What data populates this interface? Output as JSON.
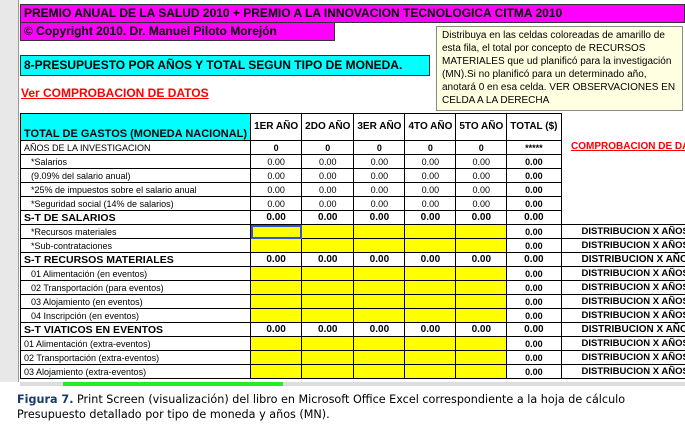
{
  "banner_title": "PREMIO ANUAL DE LA SALUD 2010 + PREMIO A LA INNOVACION TECNOLOGICA CITMA 2010",
  "copyright": "© Copyright 2010. Dr. Manuel Piloto Morejón",
  "section_title": "8-PRESUPUESTO POR AÑOS Y TOTAL SEGUN TIPO DE MONEDA.",
  "check_link": "Ver COMPROBACION DE DATOS",
  "check_side": "COMPROBACION DE DATOS",
  "table": {
    "header": {
      "label": "TOTAL DE GASTOS (MONEDA NACIONAL)",
      "cols": [
        "1ER AÑO",
        "2DO AÑO",
        "3ER AÑO",
        "4TO AÑO",
        "5TO AÑO",
        "TOTAL ($)"
      ]
    },
    "rows": [
      {
        "label": "AÑOS DE LA INVESTIGACION",
        "vals": [
          "0",
          "0",
          "0",
          "0",
          "0",
          "*****"
        ],
        "type": "years"
      },
      {
        "label": "*Salarios",
        "vals": [
          "0.00",
          "0.00",
          "0.00",
          "0.00",
          "0.00",
          "0.00"
        ],
        "type": "num",
        "indent": true
      },
      {
        "label": "(9.09% del salario anual)",
        "vals": [
          "0.00",
          "0.00",
          "0.00",
          "0.00",
          "0.00",
          "0.00"
        ],
        "type": "num",
        "indent": true
      },
      {
        "label": "*25% de impuestos sobre el salario anual",
        "vals": [
          "0.00",
          "0.00",
          "0.00",
          "0.00",
          "0.00",
          "0.00"
        ],
        "type": "num",
        "indent": true
      },
      {
        "label": "*Seguridad social  (14% de salarios)",
        "vals": [
          "0.00",
          "0.00",
          "0.00",
          "0.00",
          "0.00",
          "0.00"
        ],
        "type": "num",
        "indent": true
      },
      {
        "label": "S-T DE SALARIOS",
        "vals": [
          "0.00",
          "0.00",
          "0.00",
          "0.00",
          "0.00",
          "0.00"
        ],
        "type": "st"
      },
      {
        "label": "*Recursos materiales",
        "vals": [
          "",
          "",
          "",
          "",
          "",
          "0.00"
        ],
        "type": "input",
        "indent": true,
        "dist": "DISTRIBUCION X AÑOS CO"
      },
      {
        "label": "*Sub-contrataciones",
        "vals": [
          "",
          "",
          "",
          "",
          "",
          "0.00"
        ],
        "type": "input",
        "indent": true,
        "dist": "DISTRIBUCION X AÑOS CO"
      },
      {
        "label": "S-T RECURSOS MATERIALES",
        "vals": [
          "0.00",
          "0.00",
          "0.00",
          "0.00",
          "0.00",
          "0.00"
        ],
        "type": "st",
        "dist": "DISTRIBUCION X AÑOS CO"
      },
      {
        "label": "01 Alimentación (en eventos)",
        "vals": [
          "",
          "",
          "",
          "",
          "",
          "0.00"
        ],
        "type": "input",
        "indent": true,
        "dist": "DISTRIBUCION X AÑOS CO"
      },
      {
        "label": "02 Transportación (para eventos)",
        "vals": [
          "",
          "",
          "",
          "",
          "",
          "0.00"
        ],
        "type": "input",
        "indent": true,
        "dist": "DISTRIBUCION X AÑOS CO"
      },
      {
        "label": "03 Alojamiento (en eventos)",
        "vals": [
          "",
          "",
          "",
          "",
          "",
          "0.00"
        ],
        "type": "input",
        "indent": true,
        "dist": "DISTRIBUCION X AÑOS CO"
      },
      {
        "label": "04 Inscripción (en eventos)",
        "vals": [
          "",
          "",
          "",
          "",
          "",
          "0.00"
        ],
        "type": "input",
        "indent": true,
        "dist": "DISTRIBUCION X AÑOS CO"
      },
      {
        "label": "S-T VIATICOS EN EVENTOS",
        "vals": [
          "0.00",
          "0.00",
          "0.00",
          "0.00",
          "0.00",
          "0.00"
        ],
        "type": "st",
        "dist": "DISTRIBUCION X AÑOS CO"
      },
      {
        "label": "01 Alimentación (extra-eventos)",
        "vals": [
          "",
          "",
          "",
          "",
          "",
          "0.00"
        ],
        "type": "input",
        "dist": "DISTRIBUCION X AÑOS CO"
      },
      {
        "label": "02 Transportación (extra-eventos)",
        "vals": [
          "",
          "",
          "",
          "",
          "",
          "0.00"
        ],
        "type": "input",
        "dist": "DISTRIBUCION X AÑOS CO"
      },
      {
        "label": "03 Alojamiento (extra-eventos)",
        "vals": [
          "",
          "",
          "",
          "",
          "",
          "0.00"
        ],
        "type": "input",
        "dist": "DISTRIBUCION X AÑOS CO"
      }
    ]
  },
  "tooltip": "Distribuya en las celdas coloreadas de amarillo de esta fila, el total por concepto de RECURSOS MATERIALES que ud planificó para la investigación (MN).Si no planificó para un determinado año, anotará 0 en esa celda. VER OBSERVACIONES EN CELDA A LA DERECHA",
  "caption": {
    "label": "Figura 7.",
    "text": " Print Screen (visualización) del libro en Microsoft Office Excel correspondiente a la hoja de cálculo Presupuesto detallado por tipo de moneda y años (MN)."
  },
  "colors": {
    "magenta": "#ff00ff",
    "cyan": "#00ffff",
    "input_yellow": "#ffff00",
    "link_red": "#ff0000"
  }
}
